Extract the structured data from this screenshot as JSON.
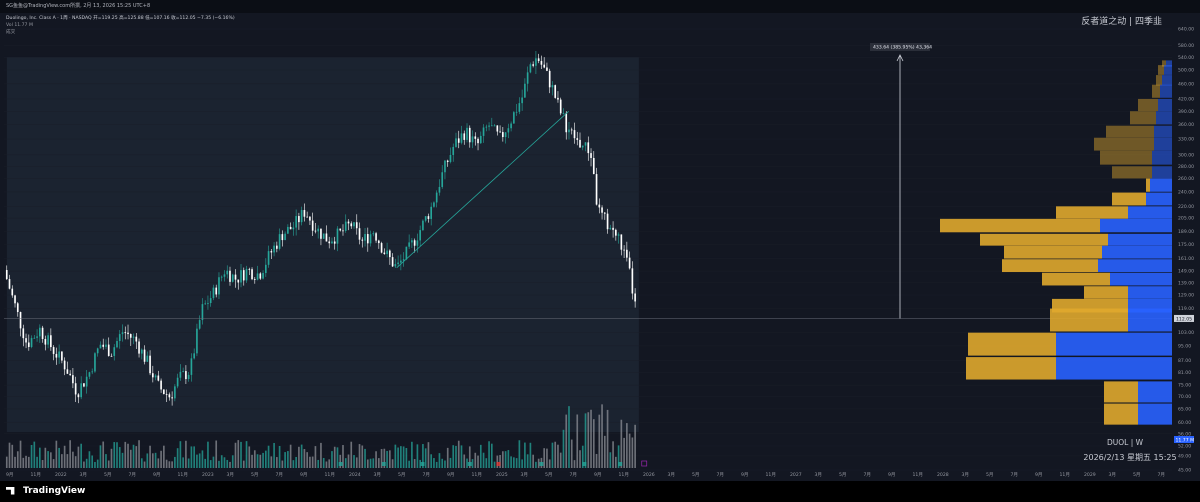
{
  "header": {
    "topbar_text": "SG鱼鱼@TradingView.com所撰, 2月 13, 2026 15:25 UTC+8",
    "legend_line1": "Duolingo, Inc. Class A · 1周 · NASDAQ 开=119.25 高=125.88 低=107.16 收=112.05 −7.35 (−6.16%)",
    "legend_line2": "Vol 11.77 M",
    "legend_line3": "成交",
    "watermark": "反者道之动 | 四季韭",
    "ticker": "DUOL | W",
    "datetime": "2026/2/13 星期五 15:25",
    "logo": "TradingView"
  },
  "colors": {
    "background": "#131722",
    "up": "#26a69a",
    "down": "#ffffff",
    "vp_buy": "#2962ff",
    "vp_sell": "#e0a82e"
  },
  "chart_data": {
    "type": "candlestick",
    "symbol": "DUOL",
    "interval": "W",
    "y_axis_labels": [
      "640.00",
      "580.00",
      "540.00",
      "500.00",
      "460.00",
      "420.00",
      "390.00",
      "360.00",
      "330.00",
      "300.00",
      "280.00",
      "260.00",
      "240.00",
      "220.00",
      "205.00",
      "189.00",
      "175.00",
      "161.00",
      "149.00",
      "139.00",
      "129.00",
      "119.00",
      "103.00",
      "95.00",
      "87.00",
      "81.00",
      "75.00",
      "70.00",
      "65.00",
      "60.00",
      "56.00",
      "52.00",
      "49.00",
      "45.00"
    ],
    "x_axis_labels": [
      "9月",
      "11月",
      "2022",
      "3月",
      "5月",
      "7月",
      "9月",
      "11月",
      "2023",
      "3月",
      "5月",
      "7月",
      "9月",
      "11月",
      "2024",
      "3月",
      "5月",
      "7月",
      "9月",
      "11月",
      "2025",
      "3月",
      "5月",
      "7月",
      "9月",
      "11月",
      "2026",
      "3月",
      "5月",
      "7月",
      "9月",
      "11月",
      "2027",
      "3月",
      "5月",
      "7月",
      "9月",
      "11月",
      "2028",
      "3月",
      "5月",
      "7月",
      "9月",
      "11月",
      "2029",
      "3月",
      "5月",
      "7月"
    ],
    "last_price": "112.05",
    "volume_label": "11.77 M",
    "measure_label": "433.64 (385.95%) 43,364",
    "y_range": [
      45,
      640
    ],
    "log_scale": true,
    "price_path": [
      [
        2021.7,
        150
      ],
      [
        2021.78,
        120
      ],
      [
        2021.86,
        96
      ],
      [
        2021.95,
        105
      ],
      [
        2022.05,
        92
      ],
      [
        2022.13,
        84
      ],
      [
        2022.21,
        72
      ],
      [
        2022.29,
        80
      ],
      [
        2022.37,
        96
      ],
      [
        2022.45,
        92
      ],
      [
        2022.53,
        104
      ],
      [
        2022.62,
        98
      ],
      [
        2022.7,
        86
      ],
      [
        2022.78,
        74
      ],
      [
        2022.86,
        70
      ],
      [
        2022.92,
        78
      ],
      [
        2023.0,
        82
      ],
      [
        2023.08,
        118
      ],
      [
        2023.16,
        130
      ],
      [
        2023.24,
        150
      ],
      [
        2023.32,
        142
      ],
      [
        2023.4,
        150
      ],
      [
        2023.48,
        146
      ],
      [
        2023.56,
        166
      ],
      [
        2023.64,
        186
      ],
      [
        2023.72,
        195
      ],
      [
        2023.8,
        214
      ],
      [
        2023.88,
        192
      ],
      [
        2023.96,
        180
      ],
      [
        2024.04,
        186
      ],
      [
        2024.12,
        198
      ],
      [
        2024.2,
        178
      ],
      [
        2024.28,
        190
      ],
      [
        2024.36,
        166
      ],
      [
        2024.44,
        152
      ],
      [
        2024.52,
        168
      ],
      [
        2024.6,
        190
      ],
      [
        2024.68,
        218
      ],
      [
        2024.76,
        268
      ],
      [
        2024.84,
        318
      ],
      [
        2024.92,
        346
      ],
      [
        2025.0,
        316
      ],
      [
        2025.08,
        360
      ],
      [
        2025.16,
        330
      ],
      [
        2025.24,
        372
      ],
      [
        2025.32,
        428
      ],
      [
        2025.37,
        515
      ],
      [
        2025.42,
        540
      ],
      [
        2025.46,
        510
      ],
      [
        2025.52,
        455
      ],
      [
        2025.58,
        390
      ],
      [
        2025.64,
        348
      ],
      [
        2025.7,
        326
      ],
      [
        2025.76,
        312
      ],
      [
        2025.8,
        300
      ],
      [
        2025.84,
        218
      ],
      [
        2025.88,
        205
      ],
      [
        2025.94,
        192
      ],
      [
        2026.0,
        178
      ],
      [
        2026.06,
        150
      ],
      [
        2026.12,
        112
      ]
    ],
    "volume_profile": [
      {
        "price": 520,
        "buy": 6,
        "sell": 4
      },
      {
        "price": 500,
        "buy": 8,
        "sell": 6
      },
      {
        "price": 470,
        "buy": 10,
        "sell": 6
      },
      {
        "price": 440,
        "buy": 12,
        "sell": 8
      },
      {
        "price": 405,
        "buy": 14,
        "sell": 20
      },
      {
        "price": 375,
        "buy": 16,
        "sell": 26
      },
      {
        "price": 345,
        "buy": 18,
        "sell": 48
      },
      {
        "price": 320,
        "buy": 18,
        "sell": 60
      },
      {
        "price": 295,
        "buy": 20,
        "sell": 52
      },
      {
        "price": 270,
        "buy": 20,
        "sell": 40
      },
      {
        "price": 250,
        "buy": 22,
        "sell": 4
      },
      {
        "price": 230,
        "buy": 26,
        "sell": 34
      },
      {
        "price": 212,
        "buy": 44,
        "sell": 72
      },
      {
        "price": 196,
        "buy": 72,
        "sell": 160
      },
      {
        "price": 180,
        "buy": 64,
        "sell": 128
      },
      {
        "price": 167,
        "buy": 70,
        "sell": 98
      },
      {
        "price": 154,
        "buy": 74,
        "sell": 96
      },
      {
        "price": 142,
        "buy": 62,
        "sell": 68
      },
      {
        "price": 131,
        "buy": 44,
        "sell": 44
      },
      {
        "price": 121,
        "buy": 44,
        "sell": 76
      },
      {
        "price": 111,
        "buy": 44,
        "sell": 78
      },
      {
        "price": 96,
        "buy": 116,
        "sell": 88
      },
      {
        "price": 83,
        "buy": 116,
        "sell": 90
      },
      {
        "price": 72,
        "buy": 34,
        "sell": 34
      },
      {
        "price": 63,
        "buy": 34,
        "sell": 34
      }
    ]
  }
}
